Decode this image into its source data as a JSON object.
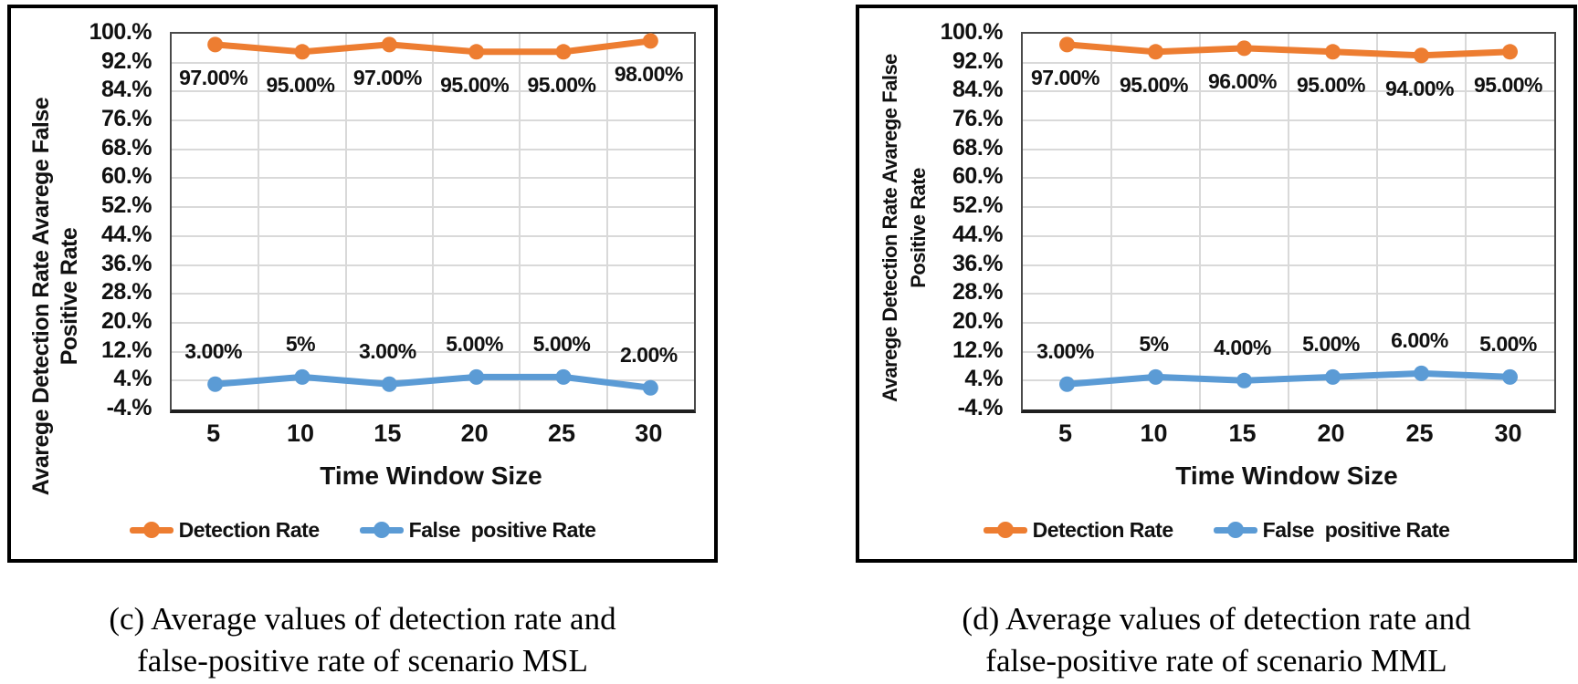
{
  "figure": {
    "captions": [
      {
        "line1": "(c) Average values of detection rate and",
        "line2": "false-positive rate of scenario MSL"
      },
      {
        "line1": "(d) Average values of detection rate and",
        "line2": "false-positive rate of scenario MML"
      }
    ]
  },
  "colors": {
    "detection_rate": "#ED7D31",
    "false_positive_rate": "#5B9BD5",
    "gridline": "#D9D9D9",
    "plot_border": "#4A4A4A",
    "axis_line": "#1F1F1F",
    "panel_border": "#000000"
  },
  "chart_data": [
    {
      "type": "line",
      "scenario": "MSL",
      "title": "",
      "xlabel": "Time Window Size",
      "ylabel": "Avarege Detection Rate Avarege False Positive Rate",
      "ylabel_lines": [
        "Avarege Detection Rate Avarege False",
        "Positive Rate"
      ],
      "categories": [
        "5",
        "10",
        "15",
        "20",
        "25",
        "30"
      ],
      "y_ticks": [
        "100.%",
        "92.%",
        "84.%",
        "76.%",
        "68.%",
        "60.%",
        "52.%",
        "44.%",
        "36.%",
        "28.%",
        "20.%",
        "12.%",
        "4.%",
        "-4.%"
      ],
      "ylim": [
        -4,
        100
      ],
      "grid": true,
      "legend_position": "bottom",
      "series": [
        {
          "name": "Detection Rate",
          "color": "#ED7D31",
          "values": [
            97,
            95,
            97,
            95,
            95,
            98
          ],
          "labels": [
            "97.00%",
            "95.00%",
            "97.00%",
            "95.00%",
            "95.00%",
            "98.00%"
          ],
          "label_side": "below"
        },
        {
          "name": "False  positive Rate",
          "color": "#5B9BD5",
          "values": [
            3,
            5,
            3,
            5,
            5,
            2
          ],
          "labels": [
            "3.00%",
            "5%",
            "3.00%",
            "5.00%",
            "5.00%",
            "2.00%"
          ],
          "label_side": "above"
        }
      ]
    },
    {
      "type": "line",
      "scenario": "MML",
      "title": "",
      "xlabel": "Time Window Size",
      "ylabel": "Avarege Detection Rate Avarege False Positive Rate",
      "ylabel_lines": [
        "Avarege Detection Rate Avarege False",
        "Positive Rate"
      ],
      "categories": [
        "5",
        "10",
        "15",
        "20",
        "25",
        "30"
      ],
      "y_ticks": [
        "100.%",
        "92.%",
        "84.%",
        "76.%",
        "68.%",
        "60.%",
        "52.%",
        "44.%",
        "36.%",
        "28.%",
        "20.%",
        "12.%",
        "4.%",
        "-4.%"
      ],
      "ylim": [
        -4,
        100
      ],
      "grid": true,
      "legend_position": "bottom",
      "series": [
        {
          "name": "Detection Rate",
          "color": "#ED7D31",
          "values": [
            97,
            95,
            96,
            95,
            94,
            95
          ],
          "labels": [
            "97.00%",
            "95.00%",
            "96.00%",
            "95.00%",
            "94.00%",
            "95.00%"
          ],
          "label_side": "below"
        },
        {
          "name": "False  positive Rate",
          "color": "#5B9BD5",
          "values": [
            3,
            5,
            4,
            5,
            6,
            5
          ],
          "labels": [
            "3.00%",
            "5%",
            "4.00%",
            "5.00%",
            "6.00%",
            "5.00%"
          ],
          "label_side": "above"
        }
      ]
    }
  ]
}
